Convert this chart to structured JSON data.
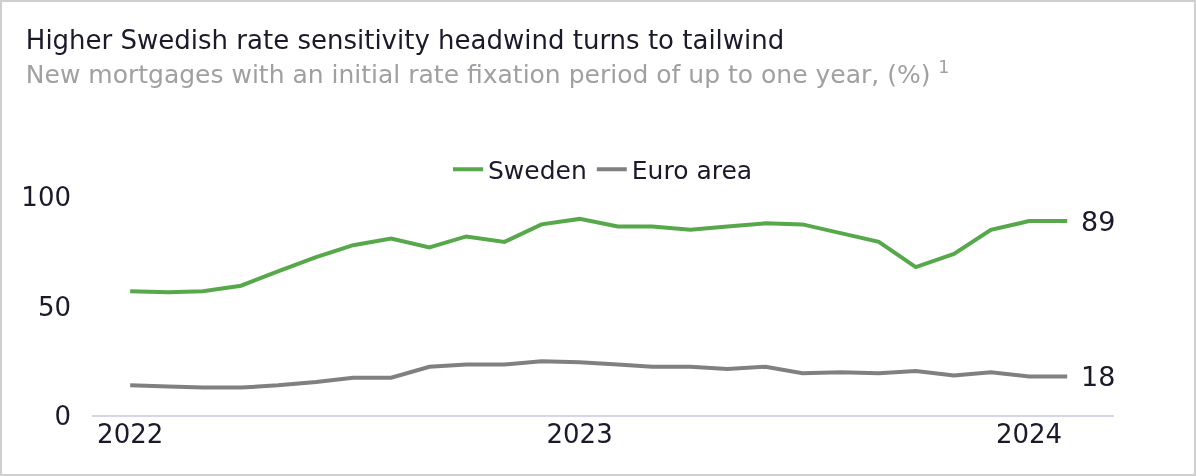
{
  "chart_data": {
    "type": "line",
    "title": "Higher Swedish rate sensitivity headwind turns to tailwind",
    "subtitle": "New mortgages with an initial rate fixation period of up to one year, (%) $^{1}$",
    "x": [
      "2022-01",
      "2022-02",
      "2022-03",
      "2022-04",
      "2022-05",
      "2022-06",
      "2022-07",
      "2022-08",
      "2022-09",
      "2022-10",
      "2022-11",
      "2022-12",
      "2023-01",
      "2023-02",
      "2023-03",
      "2023-04",
      "2023-05",
      "2023-06",
      "2023-07",
      "2023-08",
      "2023-09",
      "2023-10",
      "2023-11",
      "2023-12",
      "2024-01",
      "2024-02"
    ],
    "series": [
      {
        "name": "Sweden",
        "color": "#57a84b",
        "values": [
          57,
          56.5,
          57,
          59.5,
          66,
          72.5,
          78,
          81,
          77,
          82,
          79.5,
          87.5,
          90,
          86.5,
          86.5,
          85,
          86.5,
          88,
          87.5,
          83.5,
          79.5,
          68,
          74,
          85,
          89,
          89
        ],
        "value_labels": [
          null,
          null,
          null,
          null,
          null,
          null,
          null,
          null,
          null,
          null,
          null,
          null,
          null,
          null,
          null,
          null,
          null,
          null,
          null,
          null,
          null,
          null,
          null,
          null,
          null,
          "89"
        ]
      },
      {
        "name": "Euro area",
        "color": "#808080",
        "values": [
          14,
          13.5,
          13,
          13,
          14,
          15.5,
          17.5,
          17.5,
          22.5,
          23.5,
          23.5,
          25,
          24.5,
          23.5,
          22.5,
          22.5,
          21.5,
          22.5,
          19.5,
          20,
          19.5,
          20.5,
          18.5,
          20,
          18,
          18
        ],
        "value_labels": [
          null,
          null,
          null,
          null,
          null,
          null,
          null,
          null,
          null,
          null,
          null,
          null,
          null,
          null,
          null,
          null,
          null,
          null,
          null,
          null,
          null,
          null,
          null,
          null,
          null,
          "18"
        ]
      }
    ],
    "ylim": [
      0,
      100
    ],
    "yticks": [
      0,
      50,
      100
    ],
    "xlim": [
      "2021-12-01",
      "2024-03-10"
    ],
    "xticks": [
      {
        "value": "2022-01",
        "label": "2022"
      },
      {
        "value": "2023-01",
        "label": "2023"
      },
      {
        "value": "2024-01",
        "label": "2024"
      }
    ],
    "grid": false,
    "legend": "top",
    "marker": "none",
    "line_style": "solid"
  }
}
